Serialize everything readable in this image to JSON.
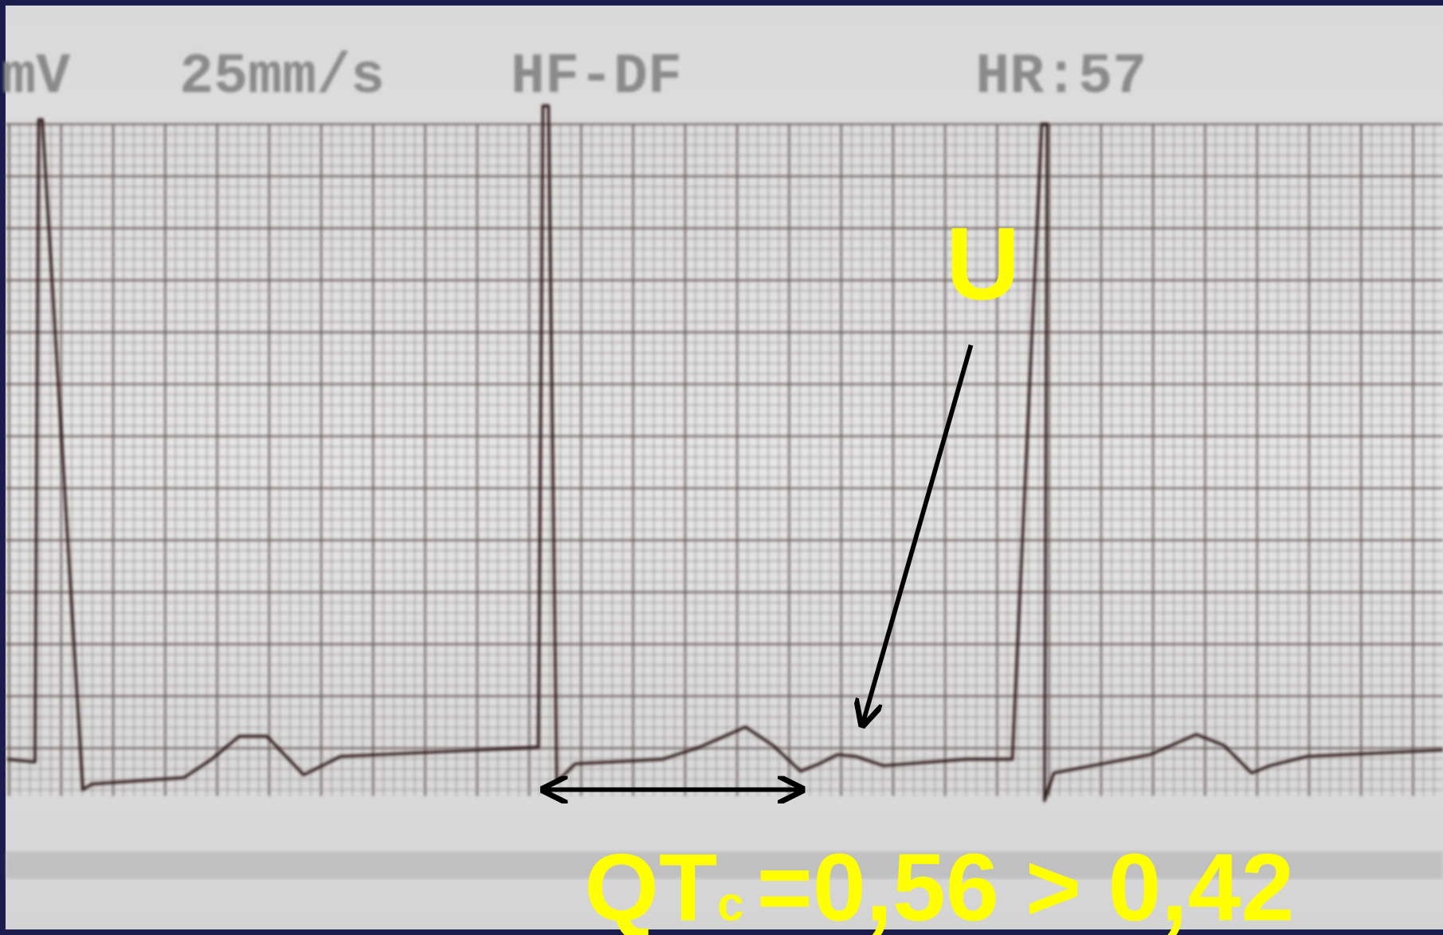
{
  "ecg_header": {
    "gain_unit": "mV",
    "speed": "25mm/s",
    "filter": "HF-DF",
    "heart_rate": "HR:57"
  },
  "annotations": {
    "u_wave": "U",
    "qtc_label": "QT",
    "qtc_subscript": "c",
    "qtc_value": "=0,56 > 0,42"
  }
}
